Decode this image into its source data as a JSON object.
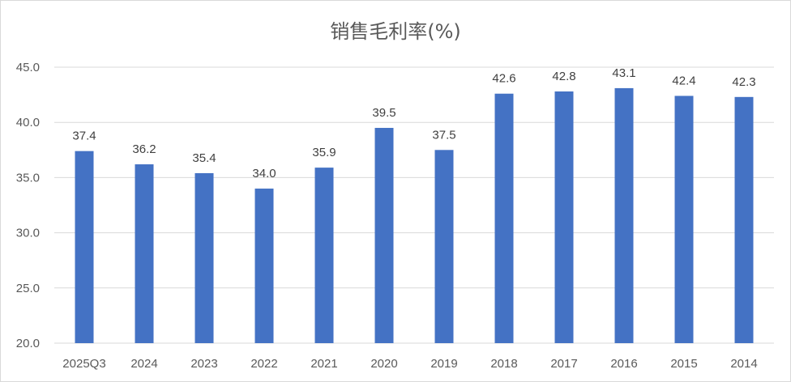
{
  "chart_data": {
    "type": "bar",
    "title": "销售毛利率(%)",
    "categories": [
      "2025Q3",
      "2024",
      "2023",
      "2022",
      "2021",
      "2020",
      "2019",
      "2018",
      "2017",
      "2016",
      "2015",
      "2014"
    ],
    "values": [
      37.4,
      36.2,
      35.4,
      34.0,
      35.9,
      39.5,
      37.5,
      42.6,
      42.8,
      43.1,
      42.4,
      42.3
    ],
    "ylim": [
      20.0,
      45.0
    ],
    "yticks": [
      "20.0",
      "25.0",
      "30.0",
      "35.0",
      "40.0",
      "45.0"
    ],
    "grid": true,
    "bar_color": "#4472C4",
    "grid_color": "#d9d9d9"
  }
}
